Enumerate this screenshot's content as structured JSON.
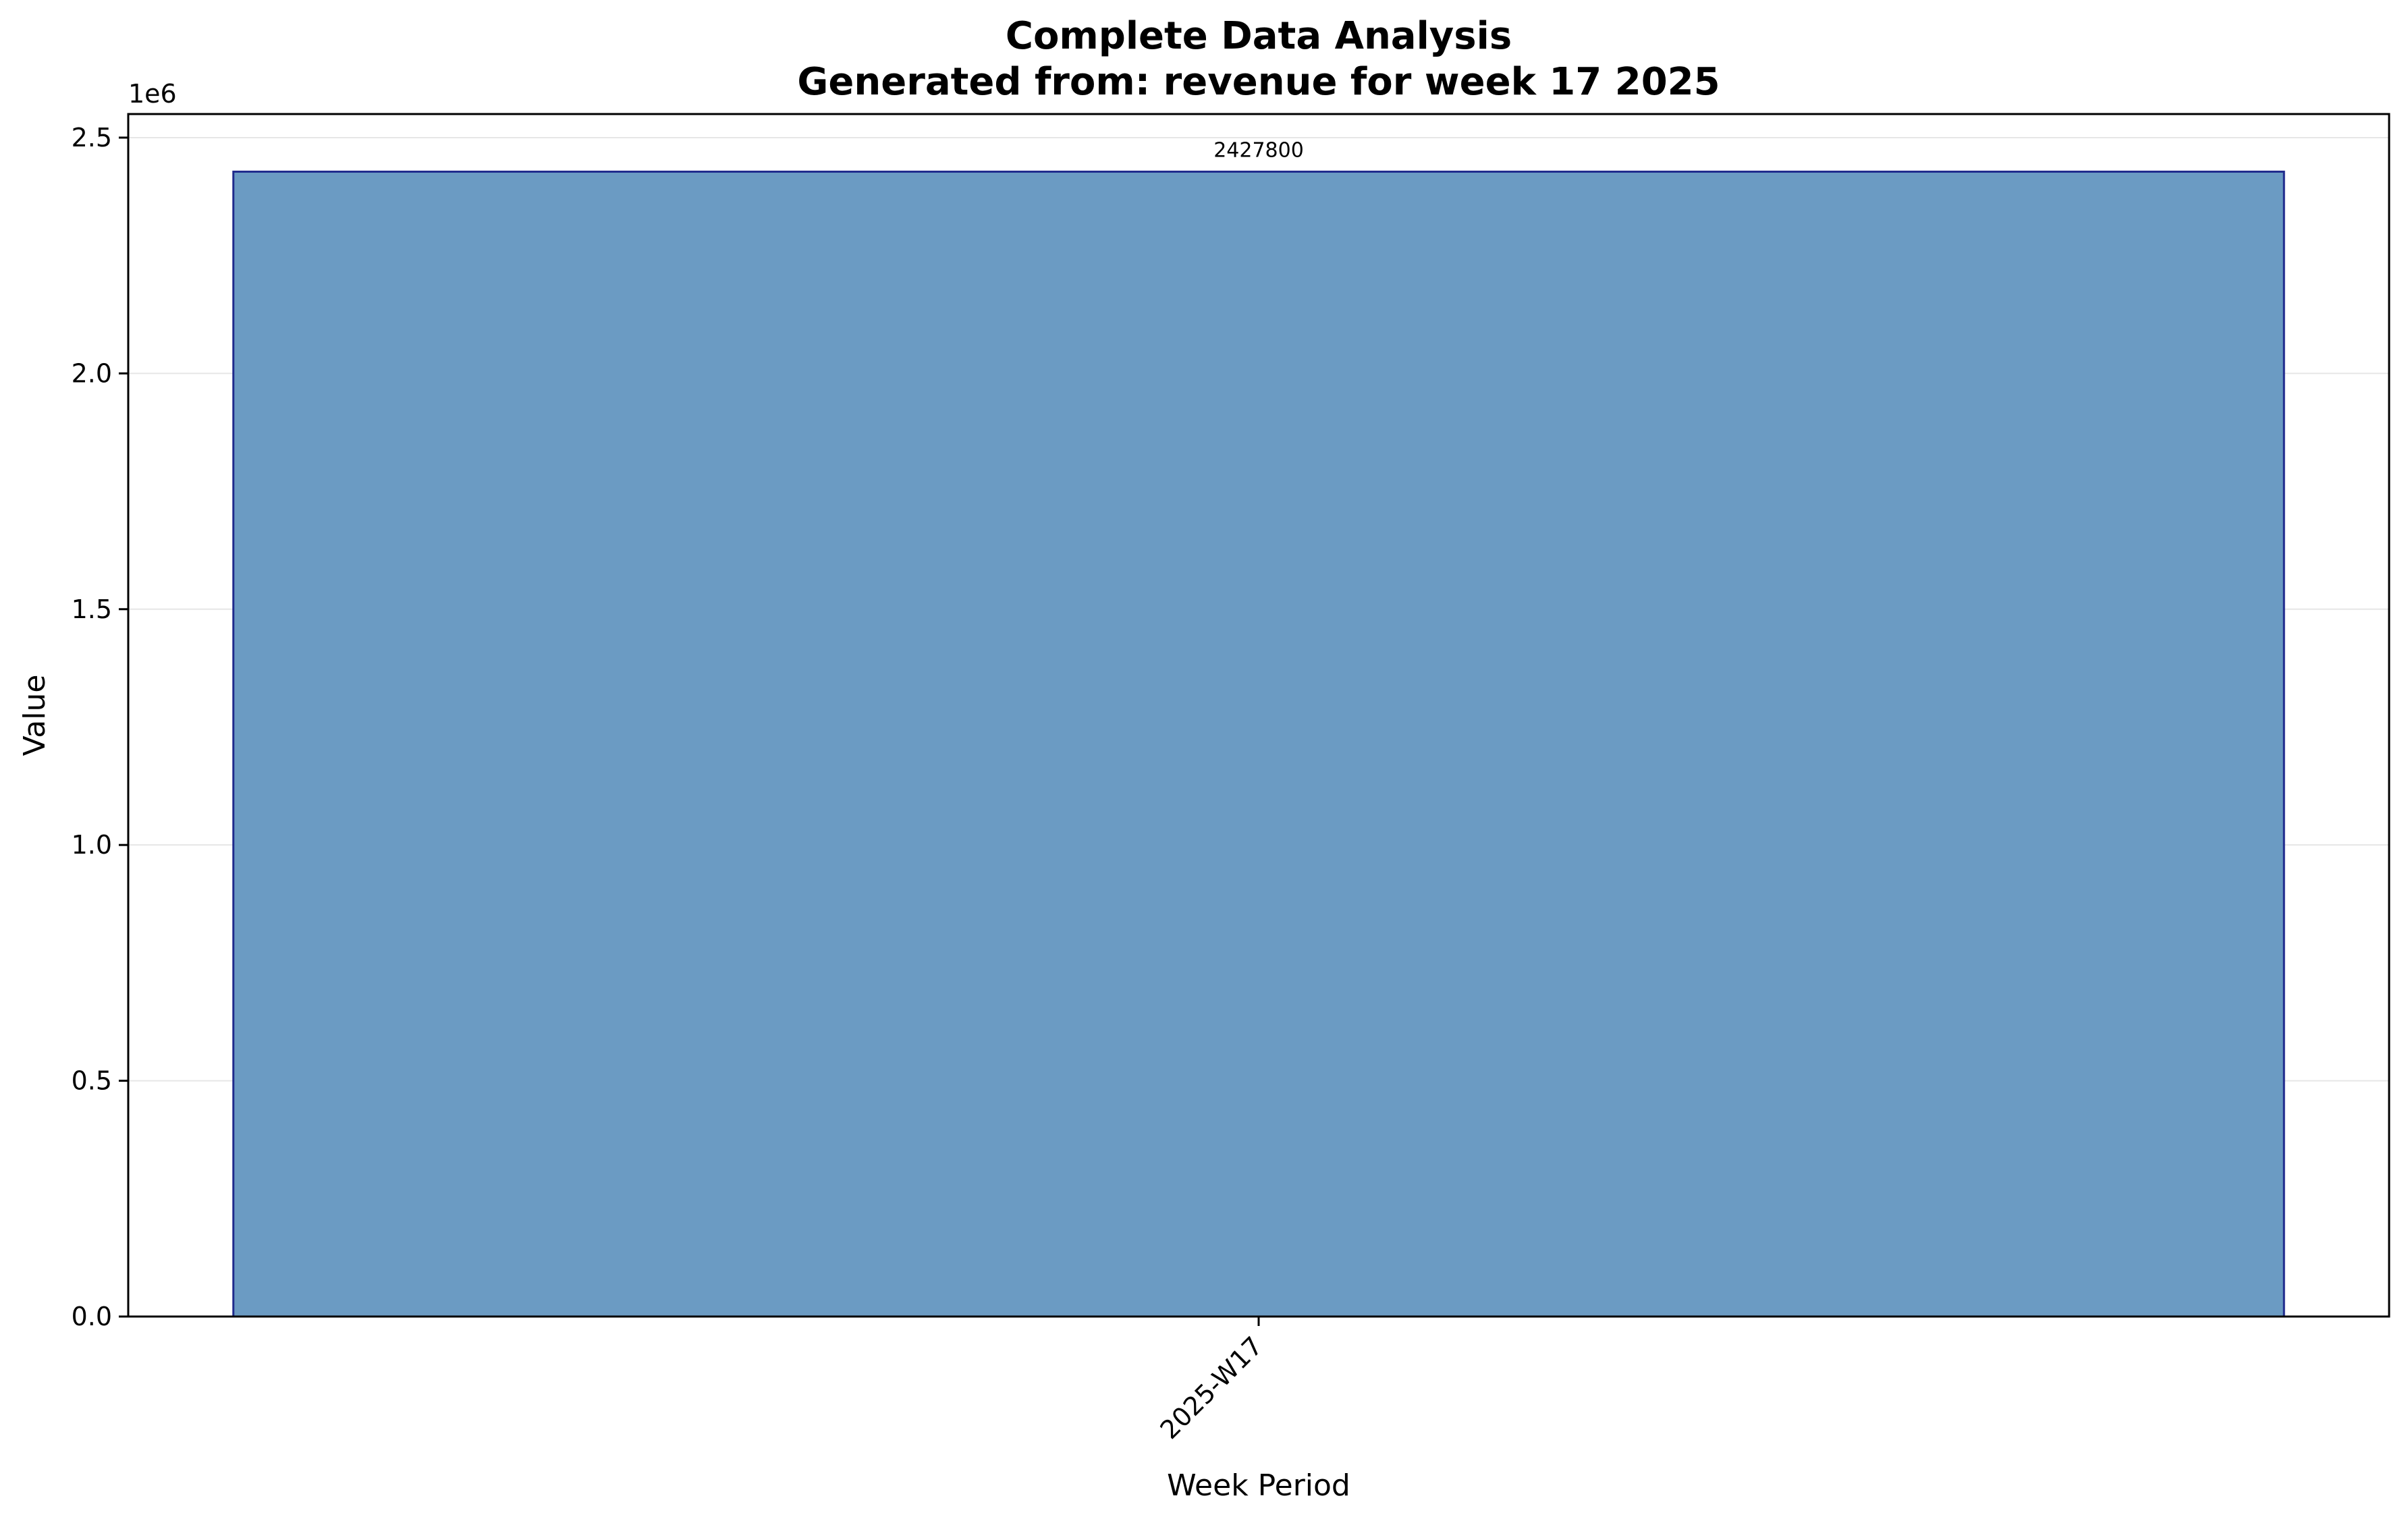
{
  "chart_data": {
    "type": "bar",
    "title": "Complete Data Analysis",
    "subtitle": "Generated from: revenue for week 17 2025",
    "xlabel": "Week Period",
    "ylabel": "Value",
    "categories": [
      "2025-W17"
    ],
    "values": [
      2427800
    ],
    "data_labels": [
      "2427800"
    ],
    "ylim": [
      0,
      2550000
    ],
    "yticks": [
      0,
      500000,
      1000000,
      1500000,
      2000000,
      2500000
    ],
    "ytick_labels": [
      "0.0",
      "0.5",
      "1.0",
      "1.5",
      "2.0",
      "2.5"
    ],
    "y_offset_label": "1e6",
    "grid": "y",
    "legend": "none",
    "colors": {
      "bar_fill": "#6b9bc3",
      "bar_edge": "#1f2a8c",
      "grid": "#e6e6e6"
    }
  }
}
